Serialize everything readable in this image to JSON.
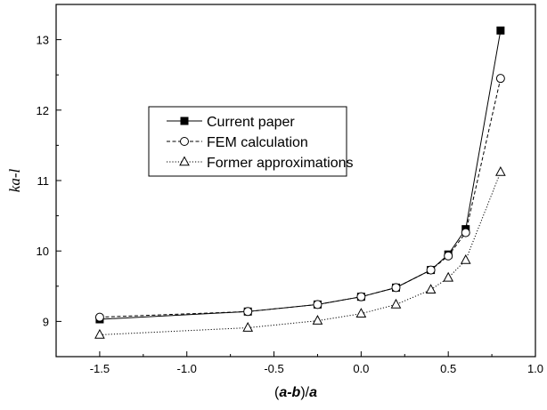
{
  "chart_data": {
    "type": "line",
    "title": "",
    "xlabel": {
      "open": "(",
      "body": "a-b",
      "close": ")/",
      "tail": "a"
    },
    "ylabel": "ka-l",
    "xlim": [
      -1.75,
      1.0
    ],
    "ylim": [
      8.5,
      13.5
    ],
    "xticks": [
      -1.5,
      -1.0,
      -0.5,
      0.0,
      0.5,
      1.0
    ],
    "xtick_labels": [
      "-1.5",
      "-1.0",
      "-0.5",
      "0.0",
      "0.5",
      "1.0"
    ],
    "yticks": [
      9,
      10,
      11,
      12,
      13
    ],
    "ytick_labels": [
      "9",
      "10",
      "11",
      "12",
      "13"
    ],
    "grid": false,
    "legend_position": "middle-left",
    "series": [
      {
        "name": "Current paper",
        "marker": "filled-square",
        "line": "solid",
        "x": [
          -1.5,
          -0.65,
          -0.25,
          0.0,
          0.2,
          0.4,
          0.5,
          0.6,
          0.8
        ],
        "y": [
          9.03,
          9.14,
          9.24,
          9.35,
          9.48,
          9.73,
          9.95,
          10.31,
          13.13
        ]
      },
      {
        "name": "FEM calculation",
        "marker": "open-circle",
        "line": "dashed",
        "x": [
          -1.5,
          -0.65,
          -0.25,
          0.0,
          0.2,
          0.4,
          0.5,
          0.6,
          0.8
        ],
        "y": [
          9.06,
          9.14,
          9.24,
          9.35,
          9.48,
          9.73,
          9.93,
          10.26,
          12.45
        ]
      },
      {
        "name": "Former approximations",
        "marker": "open-triangle",
        "line": "dotted",
        "x": [
          -1.5,
          -0.65,
          -0.25,
          0.0,
          0.2,
          0.4,
          0.5,
          0.6,
          0.8
        ],
        "y": [
          8.81,
          8.91,
          9.01,
          9.11,
          9.24,
          9.45,
          9.62,
          9.87,
          11.12
        ]
      }
    ]
  }
}
